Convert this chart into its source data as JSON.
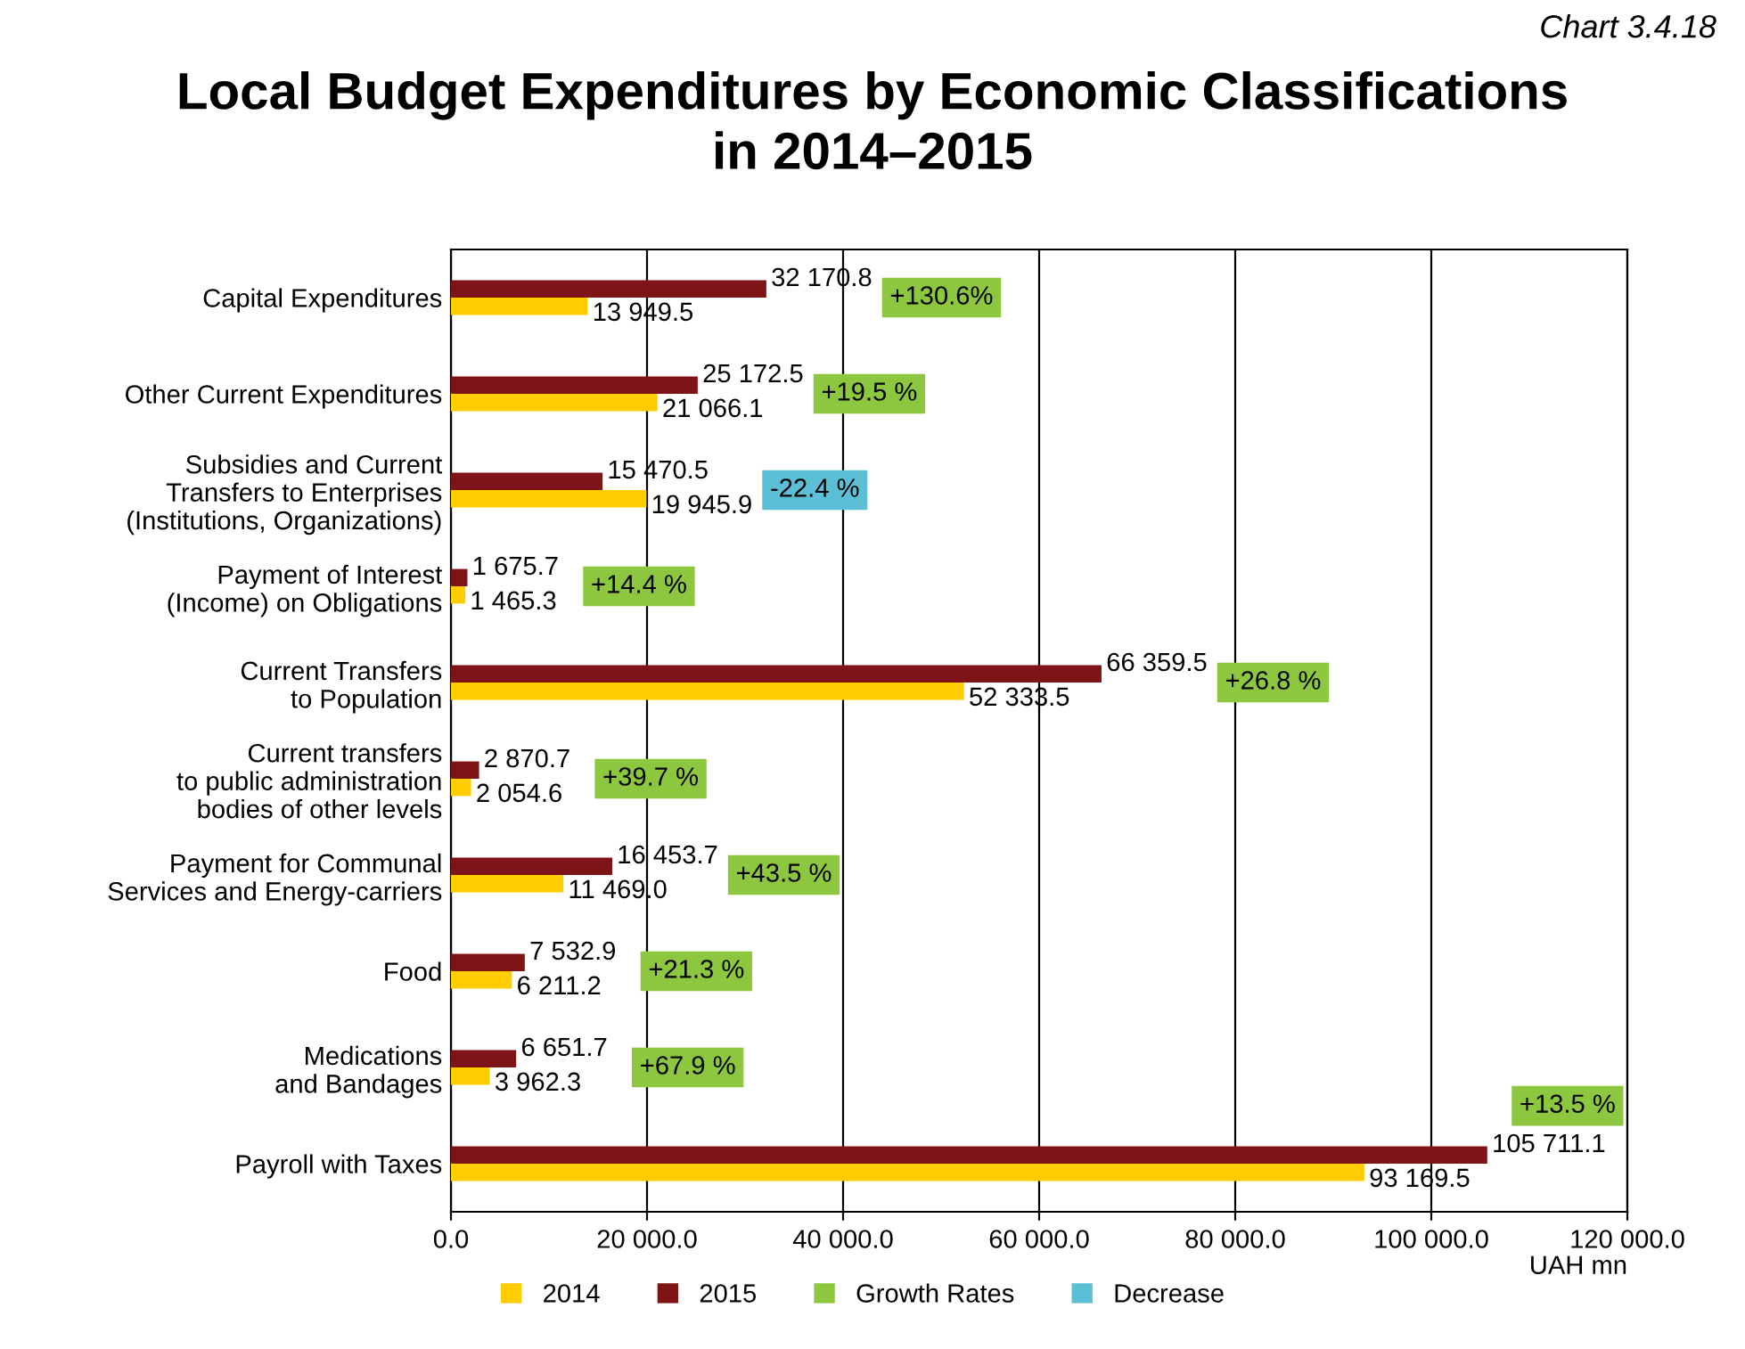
{
  "chart_data": {
    "type": "bar",
    "orientation": "horizontal",
    "title": "Local Budget Expenditures by Economic Classifications\nin 2014–2015",
    "subtitle": "Chart 3.4.18",
    "xlabel": "UAH mn",
    "categories": [
      "Capital Expenditures",
      "Other Current Expenditures",
      "Subsidies and Current\nTransfers to Enterprises\n(Institutions, Organizations)",
      "Payment of Interest\n(Income) on Obligations",
      "Current Transfers\nto Population",
      "Current transfers\nto public administration\nbodies of other levels",
      "Payment for Communal\nServices and Energy-carriers",
      "Food",
      "Medications\nand Bandages",
      "Payroll with Taxes"
    ],
    "series": [
      {
        "name": "2014",
        "color": "#ffcc00",
        "values": [
          13949.5,
          21066.1,
          19945.9,
          1465.3,
          52333.5,
          2054.6,
          11469.0,
          6211.2,
          3962.3,
          93169.5
        ],
        "value_labels": [
          "13 949.5",
          "21 066.1",
          "19 945.9",
          "1 465.3",
          "52 333.5",
          "2 054.6",
          "11 469.0",
          "6 211.2",
          "3 962.3",
          "93 169.5"
        ]
      },
      {
        "name": "2015",
        "color": "#7f1416",
        "values": [
          32170.8,
          25172.5,
          15470.5,
          1675.7,
          66359.5,
          2870.7,
          16453.7,
          7532.9,
          6651.7,
          105711.1
        ],
        "value_labels": [
          "32 170.8",
          "25 172.5",
          "15 470.5",
          "1 675.7",
          "66 359.5",
          "2 870.7",
          "16 453.7",
          "7 532.9",
          "6 651.7",
          "105 711.1"
        ]
      },
      {
        "name": "Growth Rates",
        "color": "#8dc63f",
        "values": [
          null,
          null,
          null,
          null,
          null,
          null,
          null,
          null,
          null,
          null
        ],
        "value_labels": [
          "+130.6%",
          "+19.5 %",
          null,
          "+14.4 %",
          "+26.8 %",
          "+39.7 %",
          "+43.5 %",
          "+21.3 %",
          "+67.9 %",
          "+13.5 %"
        ]
      },
      {
        "name": "Decrease",
        "color": "#5bc0d6",
        "values": [
          null,
          null,
          null,
          null,
          null,
          null,
          null,
          null,
          null,
          null
        ],
        "value_labels": [
          null,
          null,
          "-22.4 %",
          null,
          null,
          null,
          null,
          null,
          null,
          null
        ]
      }
    ],
    "xlim": [
      0,
      120000
    ],
    "xticks": [
      {
        "value": 0,
        "label": "0.0"
      },
      {
        "value": 20000,
        "label": "20 000.0"
      },
      {
        "value": 40000,
        "label": "40 000.0"
      },
      {
        "value": 60000,
        "label": "60 000.0"
      },
      {
        "value": 80000,
        "label": "80 000.0"
      },
      {
        "value": 100000,
        "label": "100 000.0"
      },
      {
        "value": 120000,
        "label": "120 000.0"
      }
    ],
    "grid": "x",
    "legend": "bottom"
  }
}
